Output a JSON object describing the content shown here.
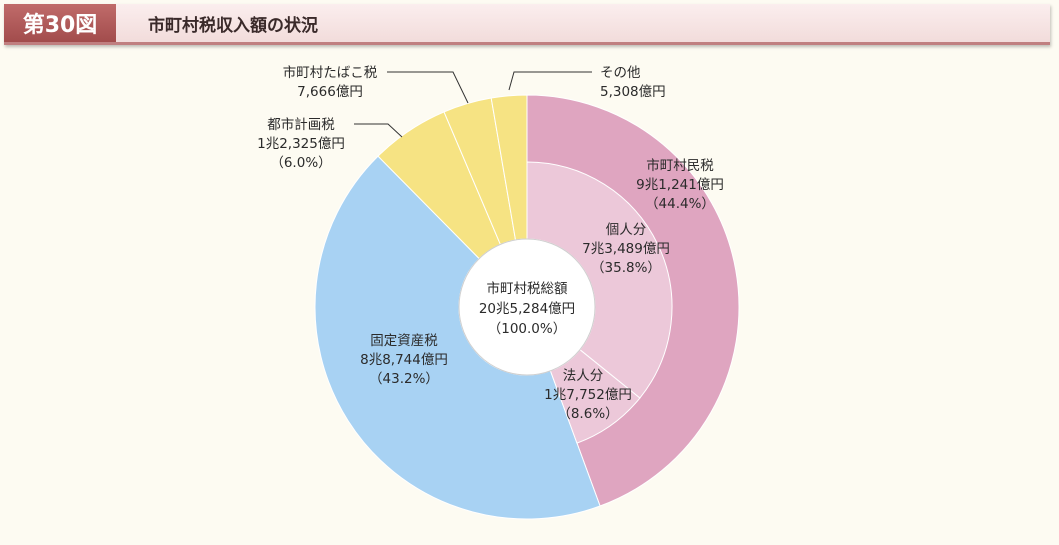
{
  "header": {
    "figure_number": "第30図",
    "title": "市町村税収入額の状況"
  },
  "chart_data": {
    "type": "pie",
    "style": "donut, two rings",
    "title": "市町村税収入額の状況",
    "center_label": {
      "line1": "市町村税総額",
      "line2": "20兆5,284億円",
      "line3": "（100.0%）"
    },
    "outer_ring": [
      {
        "name": "市町村民税",
        "amount": "9兆1,241億円",
        "share": "（44.4%）",
        "value": 44.4,
        "color": "#dfa5c0"
      },
      {
        "name": "固定資産税",
        "amount": "8兆8,744億円",
        "share": "（43.2%）",
        "value": 43.2,
        "color": "#a8d2f3"
      },
      {
        "name": "都市計画税",
        "amount": "1兆2,325億円",
        "share": "（6.0%）",
        "value": 6.0,
        "color": "#f6e383"
      },
      {
        "name": "市町村たばこ税",
        "amount": "7,666億円",
        "share": "（3.7%）",
        "value": 3.7,
        "color": "#f6e383"
      },
      {
        "name": "その他",
        "amount": "5,308億円",
        "share": "（2.7%）",
        "value": 2.7,
        "color": "#f6e383"
      }
    ],
    "inner_ring": [
      {
        "name": "個人分",
        "amount": "7兆3,489億円",
        "share": "（35.8%）",
        "value": 35.8,
        "color": "#ecc8d9"
      },
      {
        "name": "法人分",
        "amount": "1兆7,752億円",
        "share": "（8.6%）",
        "value": 8.6,
        "color": "#ecc8d9"
      }
    ]
  }
}
